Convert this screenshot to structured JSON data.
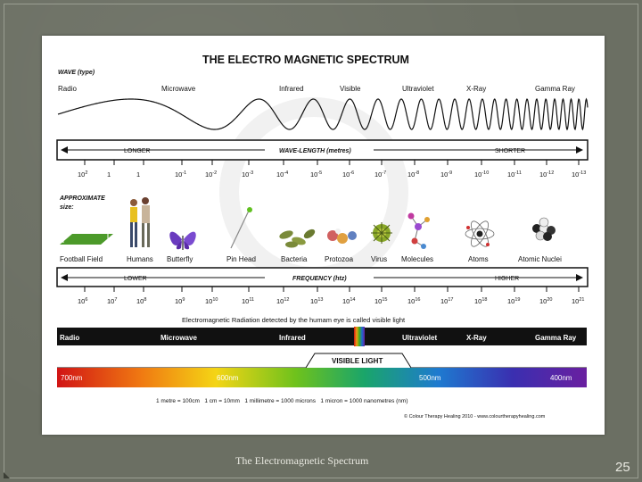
{
  "title": "THE ELECTRO MAGNETIC SPECTRUM",
  "wave_type_label": "WAVE (type)",
  "wave_types": [
    "Radio",
    "Microwave",
    "Infrared",
    "Visible",
    "Ultraviolet",
    "X-Ray",
    "Gamma Ray"
  ],
  "wavelength_bar": {
    "left": "LONGER",
    "center": "WAVE-LENGTH (metres)",
    "right": "SHORTER"
  },
  "wavelength_ticks": [
    {
      "base": "10",
      "exp": "2"
    },
    {
      "base": "1",
      "exp": ""
    },
    {
      "base": "1",
      "exp": ""
    },
    {
      "base": "10",
      "exp": "-1"
    },
    {
      "base": "10",
      "exp": "-2"
    },
    {
      "base": "10",
      "exp": "-3"
    },
    {
      "base": "10",
      "exp": "-4"
    },
    {
      "base": "10",
      "exp": "-5"
    },
    {
      "base": "10",
      "exp": "-6"
    },
    {
      "base": "10",
      "exp": "-7"
    },
    {
      "base": "10",
      "exp": "-8"
    },
    {
      "base": "10",
      "exp": "-9"
    },
    {
      "base": "10",
      "exp": "-10"
    },
    {
      "base": "10",
      "exp": "-11"
    },
    {
      "base": "10",
      "exp": "-12"
    },
    {
      "base": "10",
      "exp": "-13"
    }
  ],
  "approx_label_1": "APPROXIMATE",
  "approx_label_2": "size:",
  "size_items": [
    "Football Field",
    "Humans",
    "Butterfly",
    "Pin Head",
    "Bacteria",
    "Protozoa",
    "Virus",
    "Molecules",
    "Atoms",
    "Atomic Nuclei"
  ],
  "frequency_bar": {
    "left": "LOWER",
    "center": "FREQUENCY (htz)",
    "right": "HIGHER"
  },
  "frequency_ticks": [
    {
      "base": "10",
      "exp": "6"
    },
    {
      "base": "10",
      "exp": "7"
    },
    {
      "base": "10",
      "exp": "8"
    },
    {
      "base": "10",
      "exp": "9"
    },
    {
      "base": "10",
      "exp": "10"
    },
    {
      "base": "10",
      "exp": "11"
    },
    {
      "base": "10",
      "exp": "12"
    },
    {
      "base": "10",
      "exp": "13"
    },
    {
      "base": "10",
      "exp": "14"
    },
    {
      "base": "10",
      "exp": "15"
    },
    {
      "base": "10",
      "exp": "16"
    },
    {
      "base": "10",
      "exp": "17"
    },
    {
      "base": "10",
      "exp": "18"
    },
    {
      "base": "10",
      "exp": "19"
    },
    {
      "base": "10",
      "exp": "20"
    },
    {
      "base": "10",
      "exp": "21"
    }
  ],
  "visible_note": "Electromagnetic Radiation detected by the humam eye is called visible light",
  "band_bar": [
    "Radio",
    "Microwave",
    "Infrared",
    "Ultraviolet",
    "X-Ray",
    "Gamma Ray"
  ],
  "visible_light_label": "VISIBLE LIGHT",
  "spectrum_labels": [
    "700nm",
    "600nm",
    "500nm",
    "400nm"
  ],
  "conversion_text": "1 metre = 100cm   1 cm = 10mm   1 millimetre = 1000 microns   1 micron = 1000 nanometres (nm)",
  "credit": "© Colour Therapy Healing 2010 - www.colourtherapyhealing.com",
  "slide_caption": "The Electromagnetic Spectrum",
  "slide_number": "25",
  "colors": {
    "background": "#6b6f63",
    "bar": "#111111",
    "accent": "#ffffff"
  }
}
